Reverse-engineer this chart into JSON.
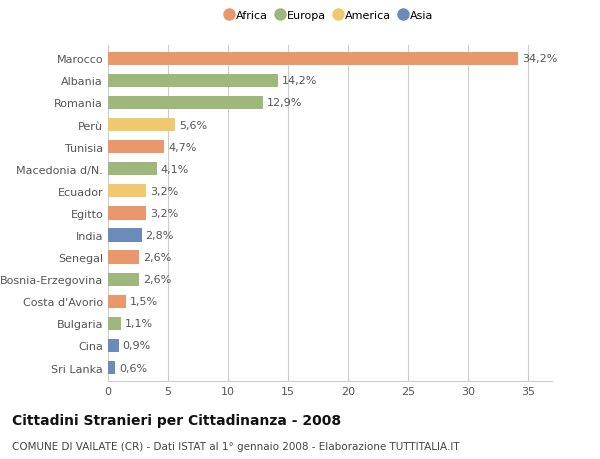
{
  "categories": [
    "Sri Lanka",
    "Cina",
    "Bulgaria",
    "Costa d'Avorio",
    "Bosnia-Erzegovina",
    "Senegal",
    "India",
    "Egitto",
    "Ecuador",
    "Macedonia d/N.",
    "Tunisia",
    "Perù",
    "Romania",
    "Albania",
    "Marocco"
  ],
  "values": [
    0.6,
    0.9,
    1.1,
    1.5,
    2.6,
    2.6,
    2.8,
    3.2,
    3.2,
    4.1,
    4.7,
    5.6,
    12.9,
    14.2,
    34.2
  ],
  "labels": [
    "0,6%",
    "0,9%",
    "1,1%",
    "1,5%",
    "2,6%",
    "2,6%",
    "2,8%",
    "3,2%",
    "3,2%",
    "4,1%",
    "4,7%",
    "5,6%",
    "12,9%",
    "14,2%",
    "34,2%"
  ],
  "colors": [
    "#6b8cba",
    "#6b8cba",
    "#9db87a",
    "#e8986a",
    "#9db87a",
    "#e8986a",
    "#6b8cba",
    "#e8986a",
    "#f0c96e",
    "#9db87a",
    "#e8986a",
    "#f0c96e",
    "#9db87a",
    "#9db87a",
    "#e8986a"
  ],
  "legend_labels": [
    "Africa",
    "Europa",
    "America",
    "Asia"
  ],
  "legend_colors": [
    "#e8986a",
    "#9db87a",
    "#f0c96e",
    "#6b8cba"
  ],
  "title": "Cittadini Stranieri per Cittadinanza - 2008",
  "subtitle": "COMUNE DI VAILATE (CR) - Dati ISTAT al 1° gennaio 2008 - Elaborazione TUTTITALIA.IT",
  "xlim": [
    0,
    37
  ],
  "xticks": [
    0,
    5,
    10,
    15,
    20,
    25,
    30,
    35
  ],
  "background_color": "#ffffff",
  "bar_height": 0.6,
  "label_fontsize": 8,
  "tick_fontsize": 8,
  "title_fontsize": 10,
  "subtitle_fontsize": 7.5
}
